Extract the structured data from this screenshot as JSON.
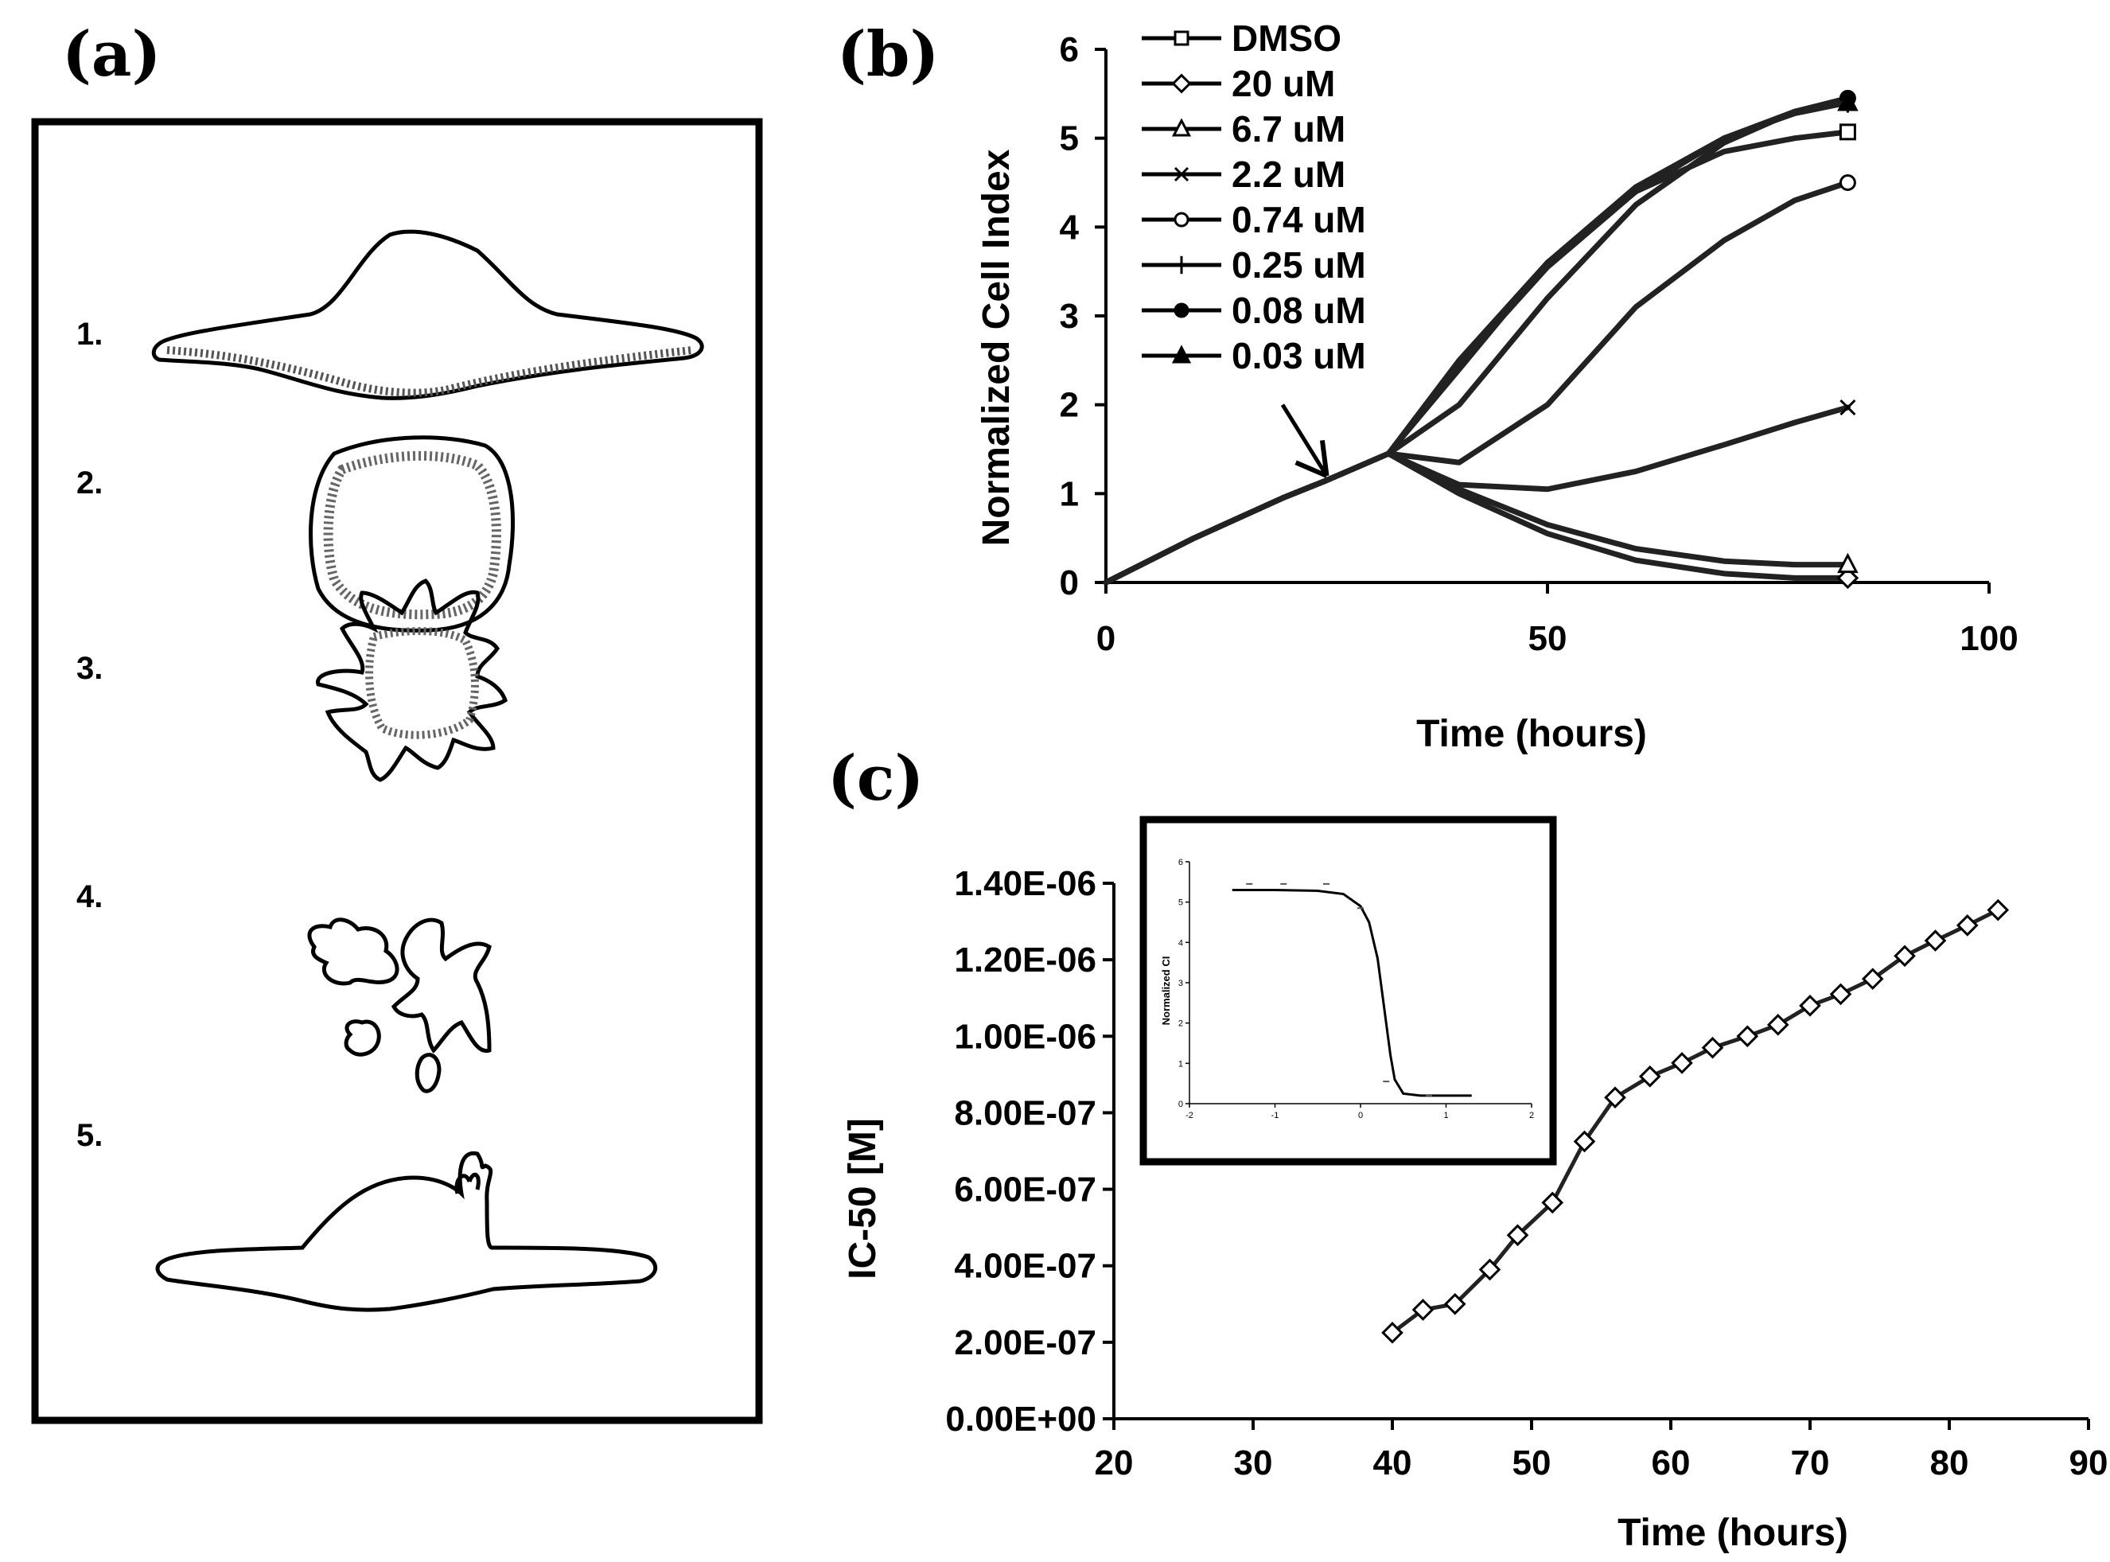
{
  "panels": {
    "a": {
      "label": "(a)",
      "cell_numbers": [
        "1.",
        "2.",
        "3.",
        "4.",
        "5."
      ]
    },
    "b": {
      "label": "(b)"
    },
    "c": {
      "label": "(c)"
    }
  },
  "chart_data": [
    {
      "panel": "b",
      "type": "line",
      "xlabel": "Time (hours)",
      "ylabel": "Normalized Cell Index",
      "xlim": [
        0,
        100
      ],
      "ylim": [
        0,
        6
      ],
      "xticks": [
        0,
        50,
        100
      ],
      "yticks": [
        0,
        1,
        2,
        3,
        4,
        5,
        6
      ],
      "legend_position": "top-left",
      "annotation": "arrow marking compound addition at ~25 h",
      "series": [
        {
          "name": "DMSO",
          "marker": "square",
          "x": [
            0,
            10,
            20,
            25,
            32,
            40,
            50,
            60,
            70,
            78,
            84
          ],
          "y": [
            0,
            0.5,
            0.95,
            1.15,
            1.45,
            2.4,
            3.6,
            4.4,
            4.85,
            5.0,
            5.07
          ]
        },
        {
          "name": "20 uM",
          "marker": "diamond",
          "x": [
            0,
            10,
            20,
            25,
            32,
            40,
            50,
            60,
            70,
            78,
            84
          ],
          "y": [
            0,
            0.5,
            0.95,
            1.15,
            1.45,
            1.0,
            0.55,
            0.25,
            0.1,
            0.05,
            0.05
          ]
        },
        {
          "name": "6.7 uM",
          "marker": "triangle-open",
          "x": [
            0,
            10,
            20,
            25,
            32,
            40,
            50,
            60,
            70,
            78,
            84
          ],
          "y": [
            0,
            0.5,
            0.95,
            1.15,
            1.45,
            1.05,
            0.65,
            0.38,
            0.24,
            0.2,
            0.2
          ]
        },
        {
          "name": "2.2 uM",
          "marker": "x",
          "x": [
            0,
            10,
            20,
            25,
            32,
            40,
            50,
            60,
            70,
            78,
            84
          ],
          "y": [
            0,
            0.5,
            0.95,
            1.15,
            1.45,
            1.1,
            1.05,
            1.25,
            1.55,
            1.8,
            1.97
          ]
        },
        {
          "name": "0.74 uM",
          "marker": "circle-open",
          "x": [
            0,
            10,
            20,
            25,
            32,
            40,
            50,
            60,
            70,
            78,
            84
          ],
          "y": [
            0,
            0.5,
            0.95,
            1.15,
            1.45,
            1.35,
            2.0,
            3.1,
            3.85,
            4.3,
            4.5
          ]
        },
        {
          "name": "0.25 uM",
          "marker": "plus",
          "x": [
            0,
            10,
            20,
            25,
            32,
            40,
            50,
            60,
            70,
            78,
            84
          ],
          "y": [
            0,
            0.5,
            0.95,
            1.15,
            1.45,
            2.0,
            3.2,
            4.25,
            4.95,
            5.3,
            5.4
          ]
        },
        {
          "name": "0.08 uM",
          "marker": "circle-filled",
          "x": [
            0,
            10,
            20,
            25,
            32,
            40,
            50,
            60,
            70,
            78,
            84
          ],
          "y": [
            0,
            0.5,
            0.95,
            1.15,
            1.45,
            2.45,
            3.55,
            4.4,
            5.0,
            5.3,
            5.45
          ]
        },
        {
          "name": "0.03 uM",
          "marker": "triangle-filled",
          "x": [
            0,
            10,
            20,
            25,
            32,
            40,
            50,
            60,
            70,
            78,
            84
          ],
          "y": [
            0,
            0.5,
            0.95,
            1.15,
            1.45,
            2.5,
            3.6,
            4.45,
            5.0,
            5.28,
            5.4
          ]
        }
      ]
    },
    {
      "panel": "c",
      "type": "line",
      "xlabel": "Time (hours)",
      "ylabel": "IC-50 [M]",
      "xlim": [
        20,
        90
      ],
      "ylim": [
        0,
        1.4e-06
      ],
      "xticks": [
        20,
        30,
        40,
        50,
        60,
        70,
        80,
        90
      ],
      "yticks": [
        0,
        2e-07,
        4e-07,
        6e-07,
        8e-07,
        1e-06,
        1.2e-06,
        1.4e-06
      ],
      "ytick_labels": [
        "0.00E+00",
        "2.00E-07",
        "4.00E-07",
        "6.00E-07",
        "8.00E-07",
        "1.00E-06",
        "1.20E-06",
        "1.40E-06"
      ],
      "series": [
        {
          "marker": "diamond-open",
          "x": [
            40,
            42.2,
            44.5,
            47,
            49,
            51.5,
            53.8,
            56,
            58.5,
            60.8,
            63,
            65.5,
            67.7,
            70,
            72.2,
            74.5,
            76.8,
            79,
            81.3,
            83.5
          ],
          "y": [
            2.25e-07,
            2.85e-07,
            3e-07,
            3.9e-07,
            4.8e-07,
            5.65e-07,
            7.25e-07,
            8.4e-07,
            8.95e-07,
            9.3e-07,
            9.7e-07,
            1e-06,
            1.03e-06,
            1.08e-06,
            1.11e-06,
            1.15e-06,
            1.21e-06,
            1.25e-06,
            1.29e-06,
            1.33e-06
          ]
        }
      ],
      "inset": {
        "type": "line",
        "ylabel": "Normalized CI",
        "xlim": [
          -2,
          2
        ],
        "ylim": [
          0,
          6
        ],
        "xticks": [
          -2,
          -1,
          0,
          1,
          2
        ],
        "yticks": [
          0,
          1,
          2,
          3,
          4,
          5,
          6
        ],
        "curve": {
          "x": [
            -1.5,
            -1.0,
            -0.5,
            -0.2,
            0.0,
            0.1,
            0.2,
            0.25,
            0.3,
            0.35,
            0.4,
            0.5,
            0.7,
            1.0,
            1.3
          ],
          "y": [
            5.3,
            5.3,
            5.28,
            5.2,
            4.9,
            4.5,
            3.6,
            2.8,
            2.0,
            1.2,
            0.6,
            0.25,
            0.2,
            0.2,
            0.2
          ]
        },
        "points": {
          "x": [
            -1.3,
            -0.9,
            -0.4,
            0.0,
            0.3,
            0.8
          ],
          "y": [
            5.45,
            5.45,
            5.45,
            4.85,
            0.55,
            0.2
          ]
        }
      }
    }
  ]
}
